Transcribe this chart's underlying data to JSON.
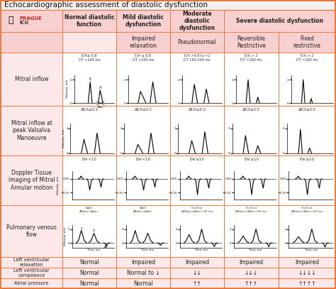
{
  "title": "Echocardiographic assessment of diastolic dysfunction",
  "bg_color": "#fce8e8",
  "header_bg": "#f8d0d0",
  "white_bg": "#ffffff",
  "border_color": "#e87030",
  "title_bg": "#f5f5f5",
  "main_headers": [
    "Normal diastolic\nfunction",
    "Mild diastolic\ndysfunction",
    "Moderate\ndiastolic\ndysfunction",
    "Severe diastolic dysfunction"
  ],
  "sub_headers": [
    "",
    "Impaired\nrelaxation",
    "Pseudonormal",
    "Reversible\nRestrictive",
    "Fixed\nrestrictive"
  ],
  "mitral_annotations": [
    "E/A≥ 0.8\nDT >160 ms",
    "E/A ≤ 0.8\nDT >200 ms",
    "E/A >0.8 to <2\nDT 160-200 ms",
    "E/A > 2\nDT <160 ms",
    "E/A > 2\nDT <160 ms"
  ],
  "valsalva_annotations": [
    "ΔE/A≥0.5",
    "ΔE/A≥0.5",
    "ΔE/A≥0.5",
    "ΔE/A≥0.5",
    "ΔE/A≥0.5"
  ],
  "doppler_annotations": [
    "E/e'<10",
    "E/e'<10",
    "E/e'≥10",
    "E/e'≥10",
    "E/e'≥10"
  ],
  "pulm_annotations": [
    "S≥D\nARdur<Adur",
    "S≥D\nARdur<Adur",
    "S<D or\nARdur>Adur+30 ms",
    "S<D or\nARdur>Adur+30 ms",
    "S<D or\nARdur>Adur+30 ms"
  ],
  "lv_relax": [
    "Normal",
    "Impaired",
    "Impaired",
    "Impaired",
    "Impaired"
  ],
  "lv_compliance": [
    "Normal",
    "Normal to ↓",
    "↓↓",
    "↓↓↓",
    "↓↓↓↓"
  ],
  "atrial_pressure": [
    "Normal",
    "Normal",
    "↑↑",
    "↑↑↑",
    "↑↑↑↑"
  ]
}
